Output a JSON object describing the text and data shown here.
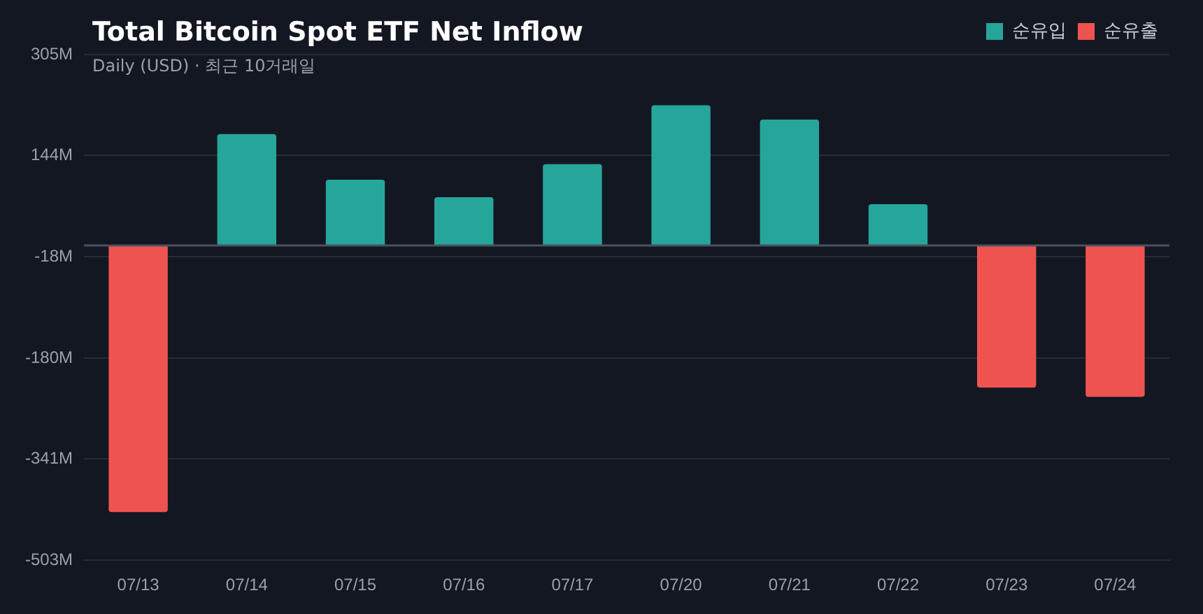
{
  "chart_data": {
    "type": "bar",
    "title": "Total Bitcoin Spot ETF Net Inflow",
    "subtitle": "Daily (USD) · 최근 10거래일",
    "categories": [
      "07/13",
      "07/14",
      "07/15",
      "07/16",
      "07/17",
      "07/20",
      "07/21",
      "07/22",
      "07/23",
      "07/24"
    ],
    "series": [
      {
        "name": "순유입",
        "color": "#26a69a",
        "values": [
          null,
          178,
          105,
          77,
          130,
          224,
          201,
          66,
          null,
          null
        ]
      },
      {
        "name": "순유출",
        "color": "#ef5350",
        "values": [
          -426,
          null,
          null,
          null,
          null,
          null,
          null,
          null,
          -227,
          -242
        ]
      }
    ],
    "stacked": true,
    "ylim": [
      -503,
      305
    ],
    "yticks": [
      {
        "value": 305,
        "label": "305M"
      },
      {
        "value": 144,
        "label": "144M"
      },
      {
        "value": -18,
        "label": "-18M"
      },
      {
        "value": -180,
        "label": "-180M"
      },
      {
        "value": -341,
        "label": "-341M"
      },
      {
        "value": -503,
        "label": "-503M"
      }
    ],
    "ref_lines": [
      {
        "axis": "y",
        "value": 0,
        "color": "#4a5260"
      }
    ],
    "grid": "y",
    "legend": "top right"
  }
}
